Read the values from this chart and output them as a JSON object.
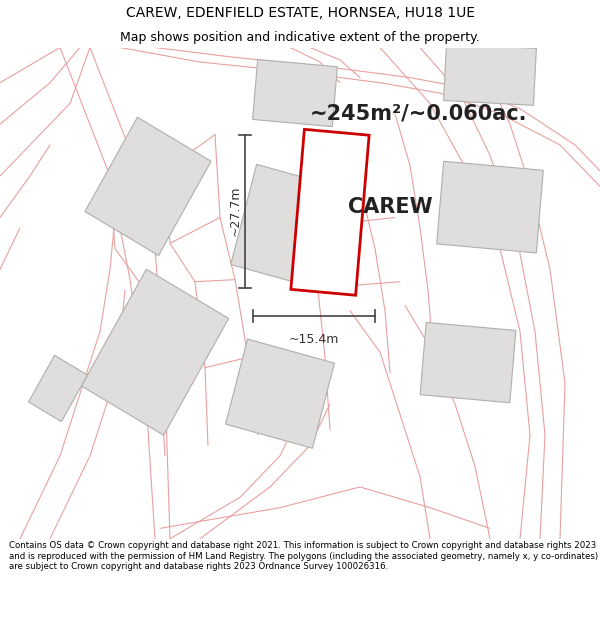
{
  "title_line1": "CAREW, EDENFIELD ESTATE, HORNSEA, HU18 1UE",
  "title_line2": "Map shows position and indicative extent of the property.",
  "area_text": "~245m²/~0.060ac.",
  "property_label": "CAREW",
  "dim_horizontal": "~15.4m",
  "dim_vertical": "~27.7m",
  "footer_text": "Contains OS data © Crown copyright and database right 2021. This information is subject to Crown copyright and database rights 2023 and is reproduced with the permission of HM Land Registry. The polygons (including the associated geometry, namely x, y co-ordinates) are subject to Crown copyright and database rights 2023 Ordnance Survey 100026316.",
  "bg_color": "#f8f8f8",
  "property_fill": "#f0efee",
  "property_edge": "#cc0000",
  "road_color": "#e8a0a0",
  "building_color": "#e0dedd",
  "building_edge": "#b0aeac",
  "outline_color": "#c0bebb",
  "footer_bg": "#ffffff",
  "title_bg": "#ffffff",
  "title_fontsize": 10,
  "subtitle_fontsize": 9,
  "area_fontsize": 15,
  "label_fontsize": 15,
  "dim_fontsize": 9
}
